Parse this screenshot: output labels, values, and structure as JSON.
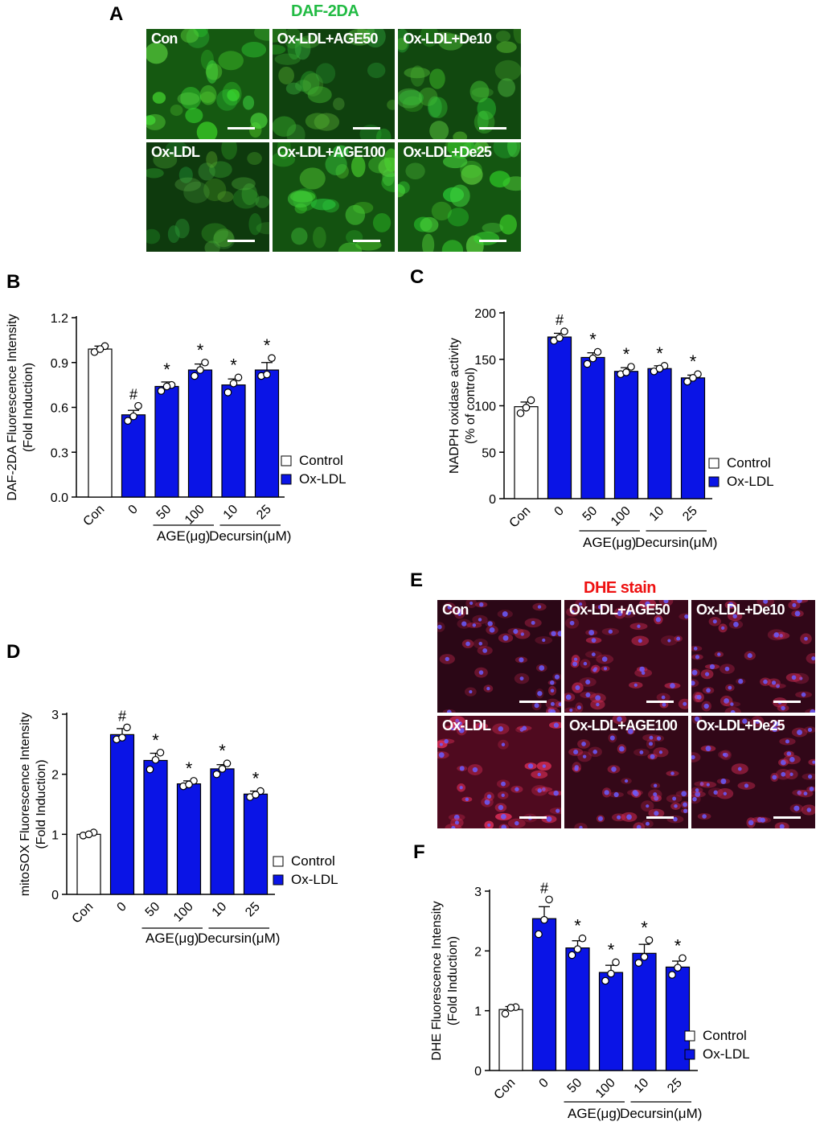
{
  "panels": {
    "A": {
      "letter": "A",
      "title": "DAF-2DA",
      "title_color": "#22bb44",
      "tiles": [
        {
          "label": "Con",
          "level": 0.7
        },
        {
          "label": "Ox-LDL+AGE50",
          "level": 0.35
        },
        {
          "label": "Ox-LDL+De10",
          "level": 0.45
        },
        {
          "label": "Ox-LDL",
          "level": 0.25
        },
        {
          "label": "Ox-LDL+AGE100",
          "level": 0.6
        },
        {
          "label": "Ox-LDL+De25",
          "level": 0.65
        }
      ]
    },
    "E": {
      "letter": "E",
      "title": "DHE stain",
      "title_color": "#ee1111",
      "tiles": [
        {
          "label": "Con",
          "level": 0.3
        },
        {
          "label": "Ox-LDL+AGE50",
          "level": 0.55
        },
        {
          "label": "Ox-LDL+De10",
          "level": 0.4
        },
        {
          "label": "Ox-LDL",
          "level": 0.9
        },
        {
          "label": "Ox-LDL+AGE100",
          "level": 0.45
        },
        {
          "label": "Ox-LDL+De25",
          "level": 0.4
        }
      ]
    }
  },
  "chart_data": [
    {
      "id": "B",
      "letter": "B",
      "type": "bar",
      "ylabel_lines": [
        "DAF-2DA Fluorescence Intensity",
        "(Fold Induction)"
      ],
      "ylim": [
        0,
        1.2
      ],
      "yticks": [
        "0.0",
        "0.3",
        "0.6",
        "0.9",
        "1.2"
      ],
      "categories": [
        "Con",
        "0",
        "50",
        "100",
        "10",
        "25"
      ],
      "values": [
        0.99,
        0.55,
        0.74,
        0.85,
        0.75,
        0.85
      ],
      "errors": [
        0.02,
        0.03,
        0.03,
        0.04,
        0.04,
        0.05
      ],
      "points": [
        [
          0.97,
          1.01,
          0.99
        ],
        [
          0.51,
          0.61,
          0.54
        ],
        [
          0.71,
          0.75,
          0.74
        ],
        [
          0.81,
          0.9,
          0.85
        ],
        [
          0.7,
          0.8,
          0.76
        ],
        [
          0.81,
          0.93,
          0.82
        ]
      ],
      "marks": [
        "",
        "#",
        "*",
        "*",
        "*",
        "*"
      ],
      "groups": [
        {
          "label": "AGE(μg)",
          "from": 2,
          "to": 3
        },
        {
          "label": "Decursin(μM)",
          "from": 4,
          "to": 5
        }
      ],
      "legend": [
        {
          "label": "Control",
          "color": "#ffffff"
        },
        {
          "label": "Ox-LDL",
          "color": "#0a14e6"
        }
      ],
      "legend_position": "right"
    },
    {
      "id": "C",
      "letter": "C",
      "type": "bar",
      "ylabel_lines": [
        "NADPH oxidase activity",
        "(% of control)"
      ],
      "ylim": [
        0,
        200
      ],
      "yticks": [
        "0",
        "50",
        "100",
        "150",
        "200"
      ],
      "categories": [
        "Con",
        "0",
        "50",
        "100",
        "10",
        "25"
      ],
      "values": [
        99,
        174,
        152,
        137,
        140,
        130
      ],
      "errors": [
        5,
        4,
        5,
        4,
        3,
        3
      ],
      "points": [
        [
          92,
          106,
          98
        ],
        [
          170,
          180,
          173
        ],
        [
          145,
          158,
          151
        ],
        [
          134,
          142,
          136
        ],
        [
          137,
          143,
          140
        ],
        [
          126,
          134,
          130
        ]
      ],
      "marks": [
        "",
        "#",
        "*",
        "*",
        "*",
        "*"
      ],
      "groups": [
        {
          "label": "AGE(μg)",
          "from": 2,
          "to": 3
        },
        {
          "label": "Decursin(μM)",
          "from": 4,
          "to": 5
        }
      ],
      "legend": [
        {
          "label": "Control",
          "color": "#ffffff"
        },
        {
          "label": "Ox-LDL",
          "color": "#0a14e6"
        }
      ],
      "legend_position": "right"
    },
    {
      "id": "D",
      "letter": "D",
      "type": "bar",
      "ylabel_lines": [
        "mitoSOX Fluorescence Intensity",
        "(Fold Induction)"
      ],
      "ylim": [
        0,
        3
      ],
      "yticks": [
        "0",
        "1",
        "2",
        "3"
      ],
      "categories": [
        "Con",
        "0",
        "50",
        "100",
        "10",
        "25"
      ],
      "values": [
        1.0,
        2.66,
        2.23,
        1.84,
        2.09,
        1.67
      ],
      "errors": [
        0.02,
        0.1,
        0.12,
        0.05,
        0.07,
        0.05
      ],
      "points": [
        [
          0.98,
          1.03,
          1.0
        ],
        [
          2.58,
          2.78,
          2.61
        ],
        [
          2.08,
          2.36,
          2.24
        ],
        [
          1.8,
          1.89,
          1.83
        ],
        [
          2.0,
          2.18,
          2.09
        ],
        [
          1.62,
          1.72,
          1.66
        ]
      ],
      "marks": [
        "",
        "#",
        "*",
        "*",
        "*",
        "*"
      ],
      "groups": [
        {
          "label": "AGE(μg)",
          "from": 2,
          "to": 3
        },
        {
          "label": "Decursin(μM)",
          "from": 4,
          "to": 5
        }
      ],
      "legend": [
        {
          "label": "Control",
          "color": "#ffffff"
        },
        {
          "label": "Ox-LDL",
          "color": "#0a14e6"
        }
      ],
      "legend_position": "right"
    },
    {
      "id": "F",
      "letter": "F",
      "type": "bar",
      "ylabel_lines": [
        "DHE Fluorescence Intensity",
        "(Fold Induction)"
      ],
      "ylim": [
        0,
        3
      ],
      "yticks": [
        "0",
        "1",
        "2",
        "3"
      ],
      "categories": [
        "Con",
        "0",
        "50",
        "100",
        "10",
        "25"
      ],
      "values": [
        1.02,
        2.54,
        2.05,
        1.64,
        1.96,
        1.73
      ],
      "errors": [
        0.05,
        0.2,
        0.12,
        0.12,
        0.15,
        0.1
      ],
      "points": [
        [
          0.95,
          1.06,
          1.05
        ],
        [
          2.28,
          2.86,
          2.52
        ],
        [
          1.93,
          2.21,
          2.03
        ],
        [
          1.5,
          1.81,
          1.62
        ],
        [
          1.8,
          2.18,
          1.9
        ],
        [
          1.6,
          1.88,
          1.72
        ]
      ],
      "marks": [
        "",
        "#",
        "*",
        "*",
        "*",
        "*"
      ],
      "groups": [
        {
          "label": "AGE(μg)",
          "from": 2,
          "to": 3
        },
        {
          "label": "Decursin(μM)",
          "from": 4,
          "to": 5
        }
      ],
      "legend": [
        {
          "label": "Control",
          "color": "#ffffff"
        },
        {
          "label": "Ox-LDL",
          "color": "#0a14e6"
        }
      ],
      "legend_position": "right"
    }
  ]
}
